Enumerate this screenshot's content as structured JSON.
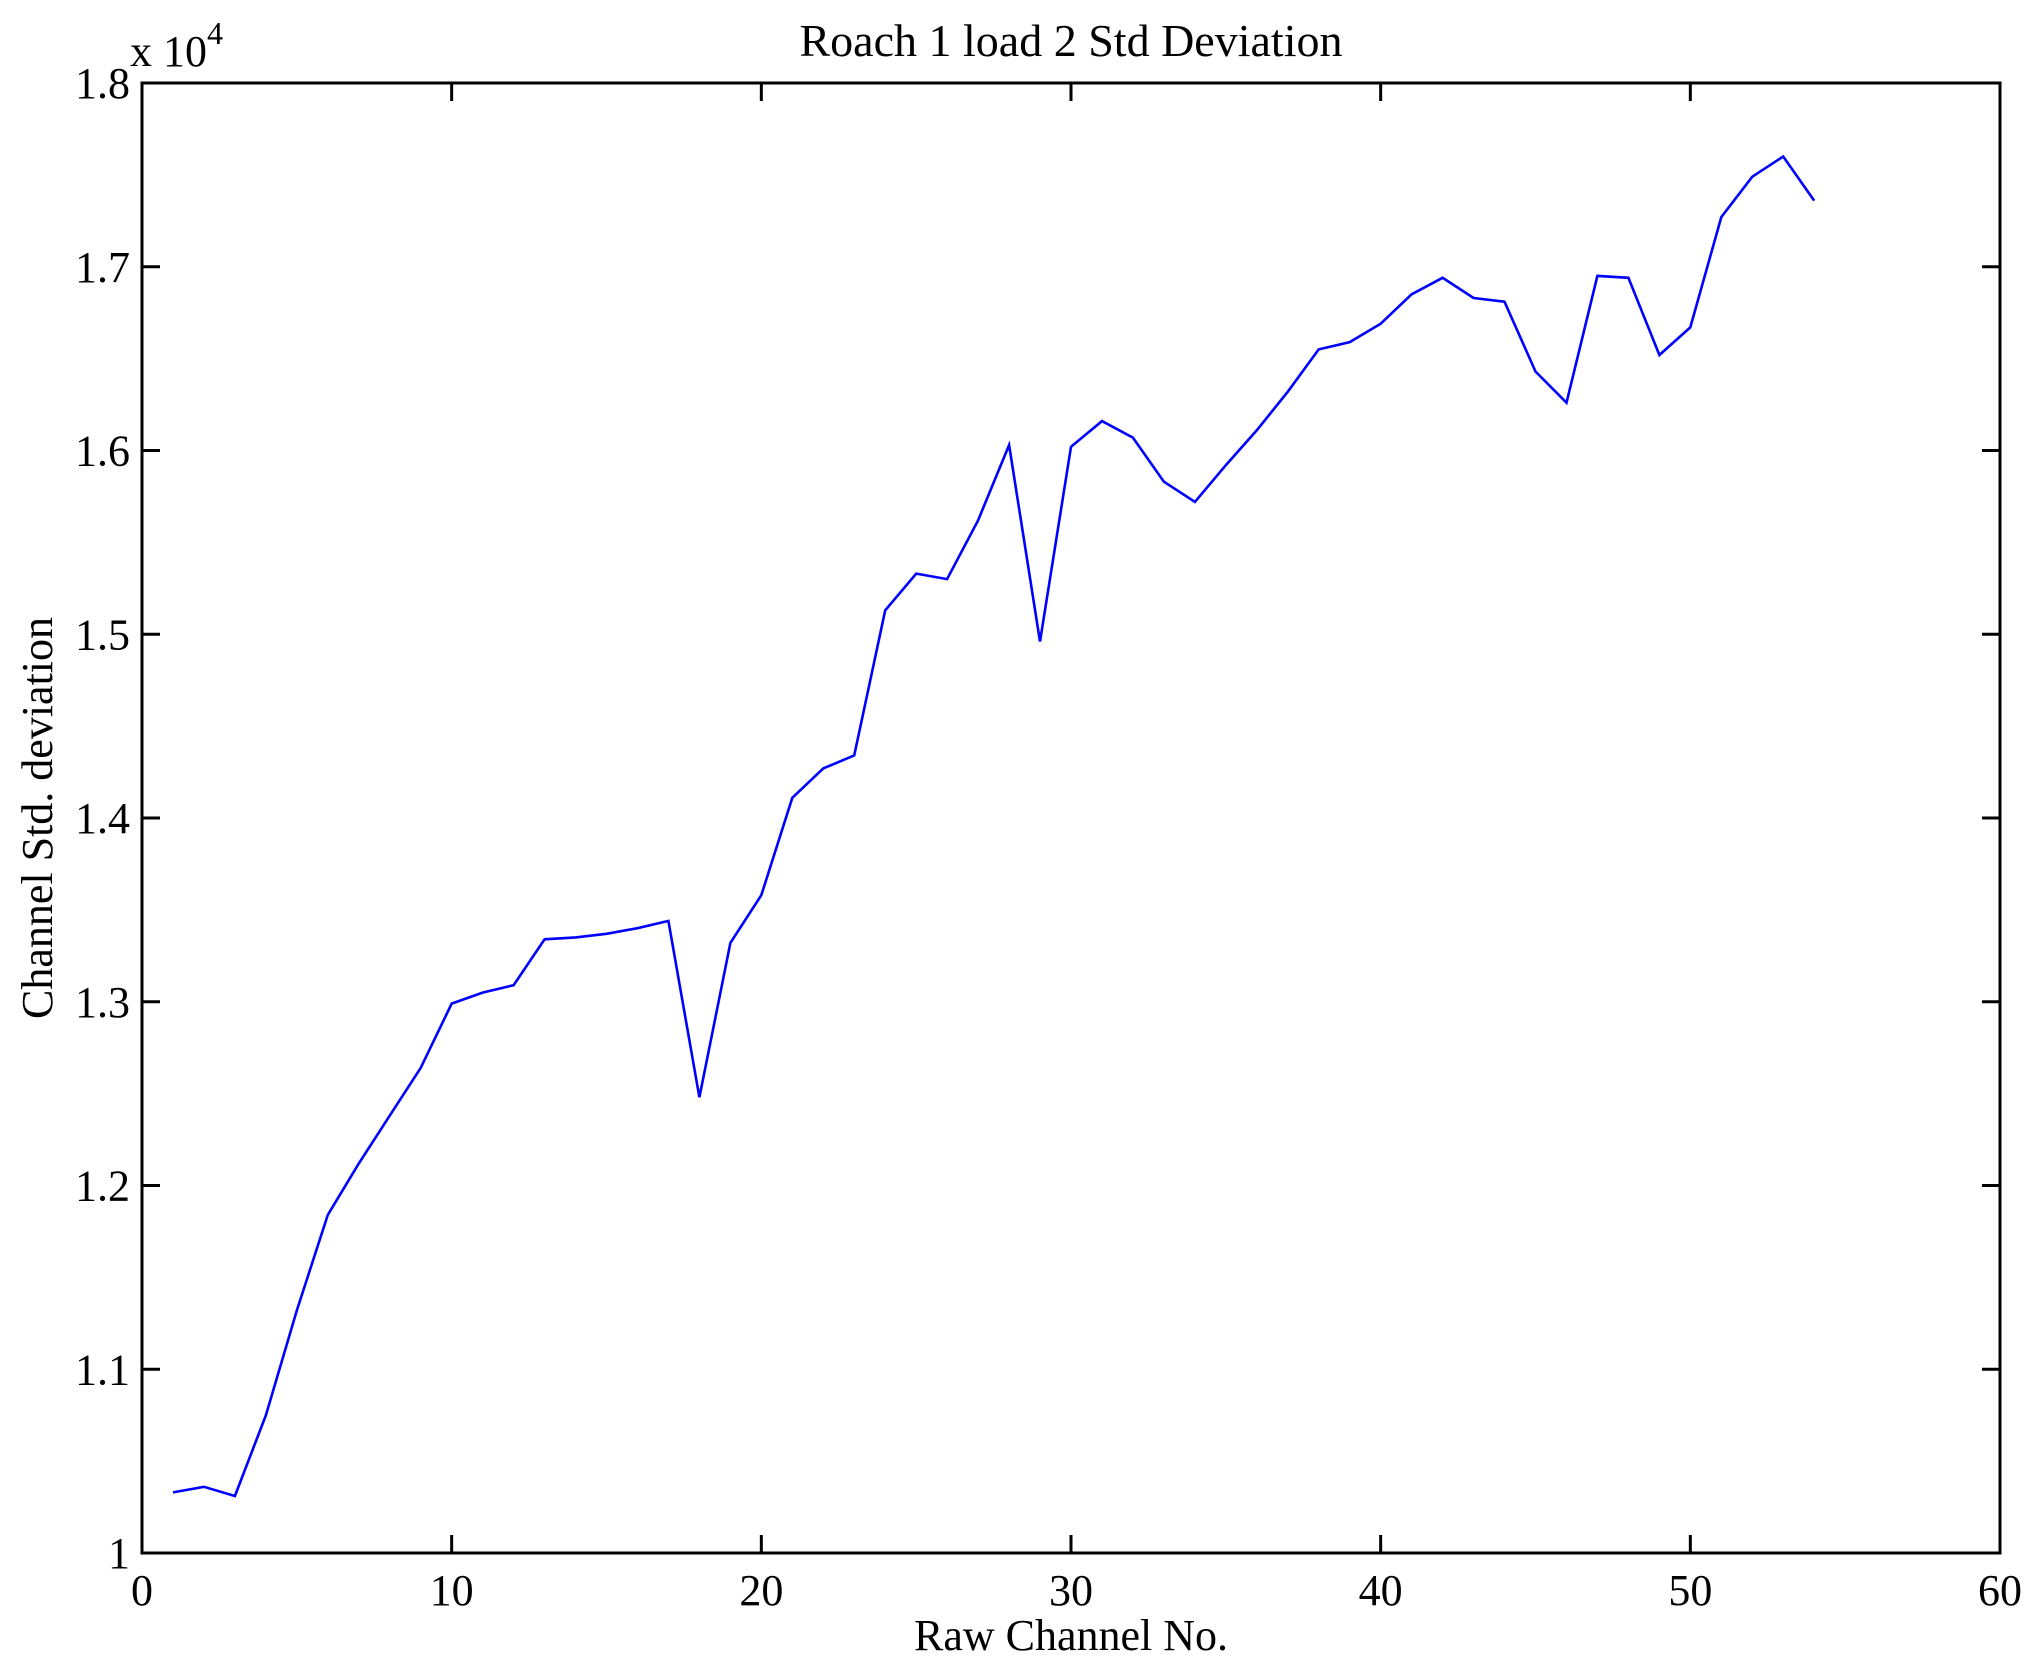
{
  "figure": {
    "background": "#ffffff",
    "axis_color": "#000000"
  },
  "chart_data": {
    "type": "line",
    "title": "Roach 1 load 2 Std Deviation",
    "xlabel": "Raw Channel No.",
    "ylabel": "Channel Std. deviation",
    "y_exponent": {
      "base": "x 10",
      "power": "4"
    },
    "line_color": "#0000ff",
    "grid": false,
    "legend": null,
    "xlim": [
      0,
      60
    ],
    "ylim": [
      1.0,
      1.8
    ],
    "xticks": [
      0,
      10,
      20,
      30,
      40,
      50,
      60
    ],
    "xtick_labels": [
      "0",
      "10",
      "20",
      "30",
      "40",
      "50",
      "60"
    ],
    "yticks": [
      1.0,
      1.1,
      1.2,
      1.3,
      1.4,
      1.5,
      1.6,
      1.7,
      1.8
    ],
    "ytick_labels": [
      "1",
      "1.1",
      "1.2",
      "1.3",
      "1.4",
      "1.5",
      "1.6",
      "1.7",
      "1.8"
    ],
    "x": [
      1,
      2,
      3,
      4,
      5,
      6,
      7,
      8,
      9,
      10,
      11,
      12,
      13,
      14,
      15,
      16,
      17,
      18,
      19,
      20,
      21,
      22,
      23,
      24,
      25,
      26,
      27,
      28,
      29,
      30,
      31,
      32,
      33,
      34,
      35,
      36,
      37,
      38,
      39,
      40,
      41,
      42,
      43,
      44,
      45,
      46,
      47,
      48,
      49,
      50,
      51,
      52,
      53,
      54
    ],
    "values_e4": [
      1.033,
      1.036,
      1.031,
      1.075,
      1.132,
      1.184,
      1.212,
      1.238,
      1.264,
      1.299,
      1.305,
      1.309,
      1.334,
      1.335,
      1.337,
      1.34,
      1.344,
      1.248,
      1.332,
      1.358,
      1.411,
      1.427,
      1.434,
      1.513,
      1.533,
      1.53,
      1.562,
      1.603,
      1.496,
      1.602,
      1.616,
      1.607,
      1.583,
      1.572,
      1.592,
      1.611,
      1.632,
      1.655,
      1.659,
      1.669,
      1.685,
      1.694,
      1.683,
      1.681,
      1.643,
      1.626,
      1.695,
      1.694,
      1.652,
      1.667,
      1.727,
      1.749,
      1.76,
      1.736
    ]
  }
}
